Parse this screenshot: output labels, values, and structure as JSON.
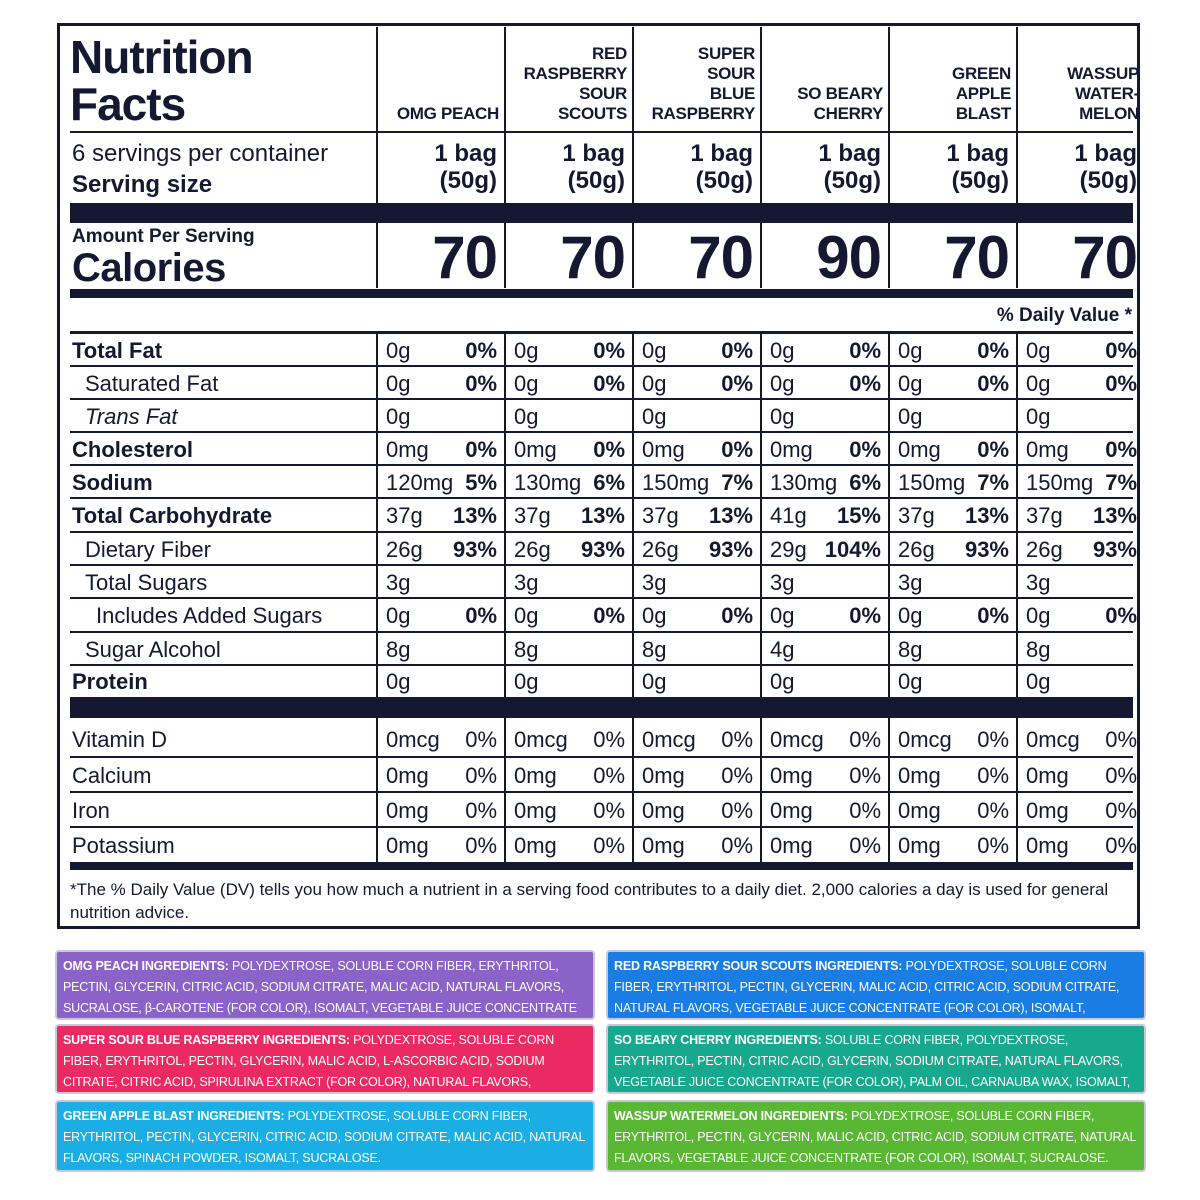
{
  "title_line1": "Nutrition",
  "title_line2": "Facts",
  "servings_per_container": "6 servings per container",
  "serving_size_label": "Serving size",
  "amount_per_serving": "Amount Per Serving",
  "calories_label": "Calories",
  "daily_value_header": "% Daily Value *",
  "flavors": [
    {
      "name_lines": [
        "OMG PEACH"
      ],
      "serving_line1": "1 bag",
      "serving_line2": "(50g)",
      "calories": "70"
    },
    {
      "name_lines": [
        "RED",
        "RASPBERRY",
        "SOUR",
        "SCOUTS"
      ],
      "serving_line1": "1 bag",
      "serving_line2": "(50g)",
      "calories": "70"
    },
    {
      "name_lines": [
        "SUPER",
        "SOUR",
        "BLUE",
        "RASPBERRY"
      ],
      "serving_line1": "1 bag",
      "serving_line2": "(50g)",
      "calories": "70"
    },
    {
      "name_lines": [
        "SO BEARY",
        "CHERRY"
      ],
      "serving_line1": "1 bag",
      "serving_line2": "(50g)",
      "calories": "90"
    },
    {
      "name_lines": [
        "GREEN",
        "APPLE",
        "BLAST"
      ],
      "serving_line1": "1 bag",
      "serving_line2": "(50g)",
      "calories": "70"
    },
    {
      "name_lines": [
        "WASSUP",
        "WATER-",
        "MELON"
      ],
      "serving_line1": "1 bag",
      "serving_line2": "(50g)",
      "calories": "70"
    }
  ],
  "nutrients": [
    {
      "label": "Total Fat",
      "style": "bold",
      "indent": 0,
      "values": [
        [
          "0g",
          "0%"
        ],
        [
          "0g",
          "0%"
        ],
        [
          "0g",
          "0%"
        ],
        [
          "0g",
          "0%"
        ],
        [
          "0g",
          "0%"
        ],
        [
          "0g",
          "0%"
        ]
      ]
    },
    {
      "label": "Saturated Fat",
      "style": "normal",
      "indent": 1,
      "values": [
        [
          "0g",
          "0%"
        ],
        [
          "0g",
          "0%"
        ],
        [
          "0g",
          "0%"
        ],
        [
          "0g",
          "0%"
        ],
        [
          "0g",
          "0%"
        ],
        [
          "0g",
          "0%"
        ]
      ]
    },
    {
      "label": "Trans Fat",
      "style": "italic",
      "indent": 1,
      "values": [
        [
          "0g",
          ""
        ],
        [
          "0g",
          ""
        ],
        [
          "0g",
          ""
        ],
        [
          "0g",
          ""
        ],
        [
          "0g",
          ""
        ],
        [
          "0g",
          ""
        ]
      ]
    },
    {
      "label": "Cholesterol",
      "style": "bold",
      "indent": 0,
      "values": [
        [
          "0mg",
          "0%"
        ],
        [
          "0mg",
          "0%"
        ],
        [
          "0mg",
          "0%"
        ],
        [
          "0mg",
          "0%"
        ],
        [
          "0mg",
          "0%"
        ],
        [
          "0mg",
          "0%"
        ]
      ]
    },
    {
      "label": "Sodium",
      "style": "bold",
      "indent": 0,
      "values": [
        [
          "120mg",
          "5%"
        ],
        [
          "130mg",
          "6%"
        ],
        [
          "150mg",
          "7%"
        ],
        [
          "130mg",
          "6%"
        ],
        [
          "150mg",
          "7%"
        ],
        [
          "150mg",
          "7%"
        ]
      ]
    },
    {
      "label": "Total Carbohydrate",
      "style": "bold",
      "indent": 0,
      "values": [
        [
          "37g",
          "13%"
        ],
        [
          "37g",
          "13%"
        ],
        [
          "37g",
          "13%"
        ],
        [
          "41g",
          "15%"
        ],
        [
          "37g",
          "13%"
        ],
        [
          "37g",
          "13%"
        ]
      ]
    },
    {
      "label": "Dietary Fiber",
      "style": "normal",
      "indent": 1,
      "values": [
        [
          "26g",
          "93%"
        ],
        [
          "26g",
          "93%"
        ],
        [
          "26g",
          "93%"
        ],
        [
          "29g",
          "104%"
        ],
        [
          "26g",
          "93%"
        ],
        [
          "26g",
          "93%"
        ]
      ]
    },
    {
      "label": "Total Sugars",
      "style": "normal",
      "indent": 1,
      "values": [
        [
          "3g",
          ""
        ],
        [
          "3g",
          ""
        ],
        [
          "3g",
          ""
        ],
        [
          "3g",
          ""
        ],
        [
          "3g",
          ""
        ],
        [
          "3g",
          ""
        ]
      ]
    },
    {
      "label": "Includes Added Sugars",
      "style": "normal",
      "indent": 2,
      "values": [
        [
          "0g",
          "0%"
        ],
        [
          "0g",
          "0%"
        ],
        [
          "0g",
          "0%"
        ],
        [
          "0g",
          "0%"
        ],
        [
          "0g",
          "0%"
        ],
        [
          "0g",
          "0%"
        ]
      ]
    },
    {
      "label": "Sugar Alcohol",
      "style": "normal",
      "indent": 1,
      "values": [
        [
          "8g",
          ""
        ],
        [
          "8g",
          ""
        ],
        [
          "8g",
          ""
        ],
        [
          "4g",
          ""
        ],
        [
          "8g",
          ""
        ],
        [
          "8g",
          ""
        ]
      ]
    },
    {
      "label": "Protein",
      "style": "bold",
      "indent": 0,
      "values": [
        [
          "0g",
          ""
        ],
        [
          "0g",
          ""
        ],
        [
          "0g",
          ""
        ],
        [
          "0g",
          ""
        ],
        [
          "0g",
          ""
        ],
        [
          "0g",
          ""
        ]
      ]
    }
  ],
  "vitamins": [
    {
      "label": "Vitamin D",
      "values": [
        [
          "0mcg",
          "0%"
        ],
        [
          "0mcg",
          "0%"
        ],
        [
          "0mcg",
          "0%"
        ],
        [
          "0mcg",
          "0%"
        ],
        [
          "0mcg",
          "0%"
        ],
        [
          "0mcg",
          "0%"
        ]
      ]
    },
    {
      "label": "Calcium",
      "values": [
        [
          "0mg",
          "0%"
        ],
        [
          "0mg",
          "0%"
        ],
        [
          "0mg",
          "0%"
        ],
        [
          "0mg",
          "0%"
        ],
        [
          "0mg",
          "0%"
        ],
        [
          "0mg",
          "0%"
        ]
      ]
    },
    {
      "label": "Iron",
      "values": [
        [
          "0mg",
          "0%"
        ],
        [
          "0mg",
          "0%"
        ],
        [
          "0mg",
          "0%"
        ],
        [
          "0mg",
          "0%"
        ],
        [
          "0mg",
          "0%"
        ],
        [
          "0mg",
          "0%"
        ]
      ]
    },
    {
      "label": "Potassium",
      "values": [
        [
          "0mg",
          "0%"
        ],
        [
          "0mg",
          "0%"
        ],
        [
          "0mg",
          "0%"
        ],
        [
          "0mg",
          "0%"
        ],
        [
          "0mg",
          "0%"
        ],
        [
          "0mg",
          "0%"
        ]
      ]
    }
  ],
  "footnote": "*The % Daily Value (DV) tells you how much a nutrient in a serving food contributes to a daily diet. 2,000 calories a day is used for general nutrition advice.",
  "ingredients": [
    {
      "label": "OMG PEACH INGREDIENTS:",
      "text": " POLYDEXTROSE, SOLUBLE CORN FIBER, ERYTHRITOL, PECTIN, GLYCERIN, CITRIC ACID, SODIUM CITRATE, MALIC ACID, NATURAL FLAVORS, SUCRALOSE, β-CAROTENE (FOR COLOR), ISOMALT, VEGETABLE JUICE CONCENTRATE (FOR COLOR).",
      "color": "#8a62c8"
    },
    {
      "label": "RED RASPBERRY SOUR SCOUTS INGREDIENTS:",
      "text": " POLYDEXTROSE, SOLUBLE CORN FIBER, ERYTHRITOL, PECTIN, GLYCERIN, MALIC ACID, CITRIC ACID, SODIUM CITRATE, NATURAL FLAVORS, VEGETABLE JUICE CONCENTRATE (FOR COLOR), ISOMALT, SUCRALOSE.",
      "color": "#1a7de3"
    },
    {
      "label": "SUPER SOUR BLUE RASPBERRY INGREDIENTS:",
      "text": " POLYDEXTROSE, SOLUBLE CORN FIBER, ERYTHRITOL, PECTIN, GLYCERIN, MALIC ACID, L-ASCORBIC ACID, SODIUM CITRATE, CITRIC ACID, SPIRULINA EXTRACT (FOR COLOR), NATURAL FLAVORS, ISOMALT, SUCRALOSE.",
      "color": "#ea2a60"
    },
    {
      "label": "SO BEARY CHERRY INGREDIENTS:",
      "text": " SOLUBLE CORN FIBER, POLYDEXTROSE, ERYTHRITOL, PECTIN, CITRIC ACID, GLYCERIN, SODIUM CITRATE, NATURAL FLAVORS, VEGETABLE JUICE CONCENTRATE (FOR COLOR), PALM OIL, CARNAUBA WAX, ISOMALT, SUCRALOSE.",
      "color": "#17a98d"
    },
    {
      "label": "GREEN APPLE BLAST INGREDIENTS:",
      "text": " POLYDEXTROSE, SOLUBLE CORN FIBER, ERYTHRITOL, PECTIN, GLYCERIN, CITRIC ACID, SODIUM CITRATE, MALIC ACID, NATURAL FLAVORS, SPINACH POWDER, ISOMALT, SUCRALOSE.",
      "color": "#1aaee5"
    },
    {
      "label": "WASSUP WATERMELON INGREDIENTS:",
      "text": " POLYDEXTROSE, SOLUBLE CORN FIBER, ERYTHRITOL, PECTIN, GLYCERIN, MALIC ACID, CITRIC ACID, SODIUM CITRATE, NATURAL FLAVORS, VEGETABLE JUICE CONCENTRATE (FOR COLOR), ISOMALT, SUCRALOSE.",
      "color": "#59b734"
    }
  ]
}
